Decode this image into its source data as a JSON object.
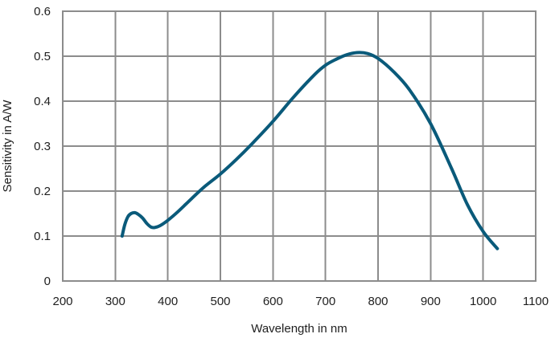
{
  "chart_data": {
    "type": "line",
    "title": "",
    "xlabel": "Wavelength in nm",
    "ylabel": "Sensitivity in A/W",
    "xlim": [
      200,
      1100
    ],
    "ylim": [
      0,
      0.6
    ],
    "x_ticks": [
      200,
      300,
      400,
      500,
      600,
      700,
      800,
      900,
      1000,
      1100
    ],
    "x_tick_labels": [
      "200",
      "300",
      "400",
      "500",
      "600",
      "700",
      "800",
      "900",
      "1000",
      "1100"
    ],
    "y_ticks": [
      0,
      0.1,
      0.2,
      0.3,
      0.4,
      0.5,
      0.6
    ],
    "y_tick_labels": [
      "0",
      "0.1",
      "0.2",
      "0.3",
      "0.4",
      "0.5",
      "0.6"
    ],
    "grid": true,
    "legend": "none",
    "series": [
      {
        "color": "#0a5a7a",
        "x": [
          313,
          318,
          324,
          330,
          337,
          344,
          352,
          360,
          368,
          375,
          385,
          400,
          420,
          445,
          470,
          500,
          530,
          560,
          600,
          640,
          680,
          700,
          720,
          740,
          760,
          780,
          800,
          830,
          860,
          900,
          940,
          970,
          1000,
          1027
        ],
        "y": [
          0.1,
          0.125,
          0.143,
          0.15,
          0.152,
          0.148,
          0.14,
          0.128,
          0.12,
          0.119,
          0.123,
          0.135,
          0.155,
          0.183,
          0.21,
          0.238,
          0.27,
          0.305,
          0.355,
          0.41,
          0.46,
          0.48,
          0.493,
          0.503,
          0.508,
          0.506,
          0.495,
          0.465,
          0.425,
          0.35,
          0.25,
          0.17,
          0.11,
          0.072
        ]
      }
    ]
  }
}
